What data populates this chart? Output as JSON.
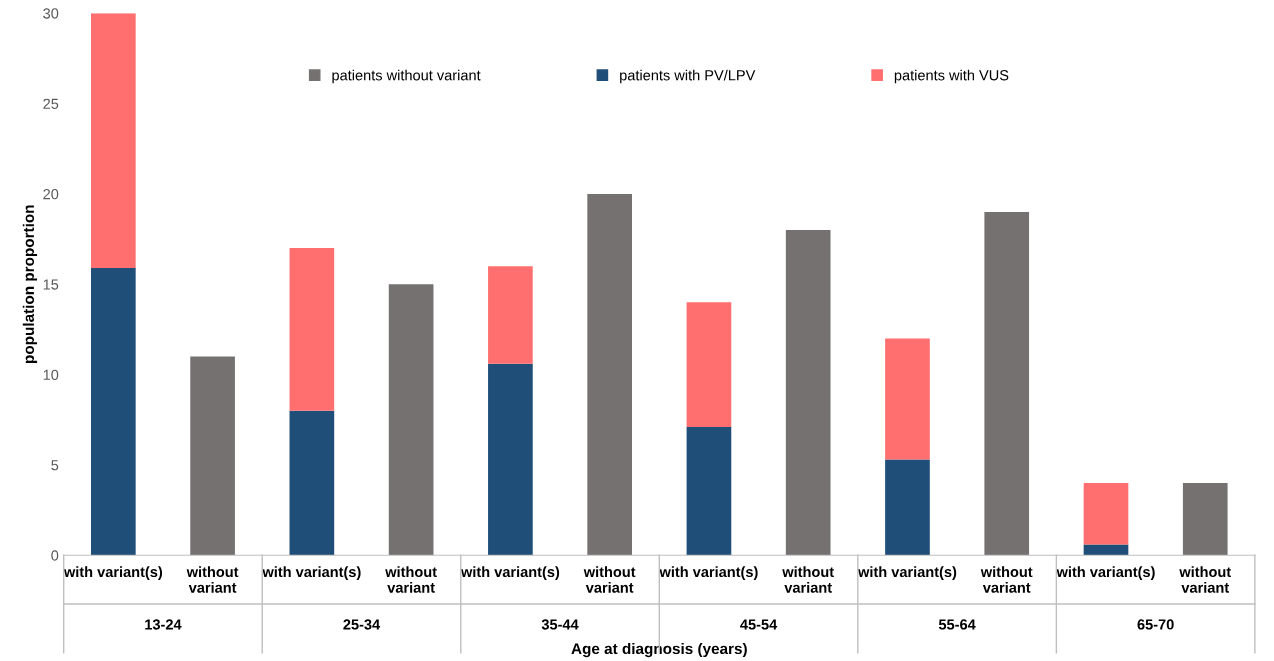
{
  "chart_data": {
    "type": "bar",
    "stacked": true,
    "xlabel": "Age at diagnosis (years)",
    "ylabel": "population proportion",
    "categories": [
      "with variant(s)",
      "without\nvariant",
      "with variant(s)",
      "without\nvariant",
      "with variant(s)",
      "without\nvariant",
      "with variant(s)",
      "without\nvariant",
      "with variant(s)",
      "without\nvariant",
      "with variant(s)",
      "without\nvariant"
    ],
    "series": [
      {
        "name": "patients without variant",
        "color": "#767171",
        "values": [
          null,
          11,
          null,
          15,
          null,
          20,
          null,
          18,
          null,
          19,
          null,
          4
        ]
      },
      {
        "name": "patients with PV/LPV",
        "color": "#1f4e79",
        "values": [
          15.9,
          null,
          8.0,
          null,
          10.6,
          null,
          7.1,
          null,
          5.3,
          null,
          0.6,
          null
        ]
      },
      {
        "name": "patients with VUS",
        "color": "#ff6f6f",
        "values": [
          14.1,
          null,
          9.0,
          null,
          5.4,
          null,
          6.9,
          null,
          6.7,
          null,
          3.4,
          null
        ]
      }
    ],
    "annotations": [
      "13-24",
      "25-34",
      "35-44",
      "45-54",
      "55-64",
      "65-70"
    ],
    "ylim": [
      0,
      30
    ],
    "yticks": [
      0,
      5,
      10,
      15,
      20,
      25,
      30
    ],
    "grid": false,
    "legend": "top"
  }
}
